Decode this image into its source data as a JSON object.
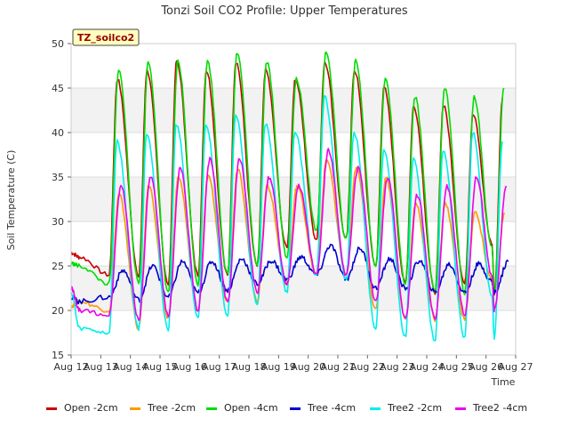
{
  "chart_data": {
    "type": "line",
    "title": "Tonzi Soil CO2 Profile: Upper Temperatures",
    "xlabel": "Time",
    "ylabel": "Soil Temperature (C)",
    "ylim": [
      15,
      50
    ],
    "yticks": [
      15,
      20,
      25,
      30,
      35,
      40,
      45,
      50
    ],
    "xlim": [
      12,
      27
    ],
    "xticks": [
      12,
      13,
      14,
      15,
      16,
      17,
      18,
      19,
      20,
      21,
      22,
      23,
      24,
      25,
      26,
      27
    ],
    "xtick_labels": [
      "Aug 12",
      "Aug 13",
      "Aug 14",
      "Aug 15",
      "Aug 16",
      "Aug 17",
      "Aug 18",
      "Aug 19",
      "Aug 20",
      "Aug 21",
      "Aug 22",
      "Aug 23",
      "Aug 24",
      "Aug 25",
      "Aug 26",
      "Aug 27"
    ],
    "site_label": "TZ_soilco2",
    "background_bands": "alternating grey/white every 5 C",
    "days": [
      12,
      13,
      14,
      15,
      16,
      17,
      18,
      19,
      20,
      21,
      22,
      23,
      24,
      25,
      26
    ],
    "series": [
      {
        "name": "Open -2cm",
        "color": "#cc0000",
        "peak_time": 0.56,
        "max": [
          null,
          46,
          47,
          48,
          47,
          48,
          47,
          46,
          48,
          47,
          45,
          43,
          43,
          42,
          44
        ],
        "min": [
          26,
          24,
          24,
          23,
          24,
          24,
          25,
          27,
          28,
          28,
          25,
          23,
          22,
          23,
          22
        ],
        "start": 26.5,
        "end": 27.5
      },
      {
        "name": "Tree -2cm",
        "color": "#ff9900",
        "peak_time": 0.62,
        "max": [
          null,
          33,
          34,
          35,
          35,
          36,
          34,
          34,
          37,
          36,
          35,
          32,
          32,
          31,
          31
        ],
        "min": [
          21,
          20,
          18,
          19,
          20,
          21,
          21,
          23,
          24,
          24,
          20,
          19,
          19,
          19,
          20
        ],
        "start": 20.5,
        "end": 23.5
      },
      {
        "name": "Open -4cm",
        "color": "#00dd00",
        "peak_time": 0.6,
        "max": [
          null,
          47,
          48,
          48,
          48,
          49,
          48,
          46,
          49,
          48,
          46,
          44,
          45,
          44,
          45
        ],
        "min": [
          25,
          23,
          23,
          22,
          23,
          24,
          25,
          26,
          29,
          28,
          25,
          23,
          22,
          22,
          22
        ],
        "start": 25.3,
        "end": 27
      },
      {
        "name": "Tree -4cm",
        "color": "#0000cc",
        "peak_time": 0.75,
        "max": [
          null,
          24.5,
          25,
          25.5,
          25.5,
          25.8,
          25.6,
          26,
          27.3,
          27,
          25.8,
          25.6,
          25.2,
          25.2,
          25.5
        ],
        "min": [
          21,
          21.5,
          21.2,
          21.5,
          22,
          22.3,
          23,
          23.5,
          24,
          23.5,
          22.5,
          22.5,
          22,
          22,
          22
        ],
        "start": 21.5,
        "end": 23.3
      },
      {
        "name": "Tree2 -2cm",
        "color": "#00eeee",
        "peak_time": 0.55,
        "max": [
          null,
          39,
          40,
          41,
          41,
          42,
          41,
          40,
          44,
          40,
          38,
          37,
          38,
          40,
          39
        ],
        "min": [
          18,
          17.5,
          18,
          17.8,
          19,
          19.5,
          20.5,
          22,
          24,
          23.5,
          18,
          17,
          16.5,
          17,
          17
        ],
        "start": 22,
        "end": 21.5
      },
      {
        "name": "Tree2 -4cm",
        "color": "#ee00ee",
        "peak_time": 0.68,
        "max": [
          null,
          34,
          35,
          36,
          37,
          37,
          35,
          34,
          38,
          36,
          35,
          33,
          34,
          35,
          34
        ],
        "min": [
          20,
          19.5,
          19,
          19.5,
          20,
          21,
          22,
          23,
          24,
          24,
          21,
          19,
          19,
          19.5,
          20
        ],
        "start": 22.5,
        "end": 24
      }
    ]
  }
}
